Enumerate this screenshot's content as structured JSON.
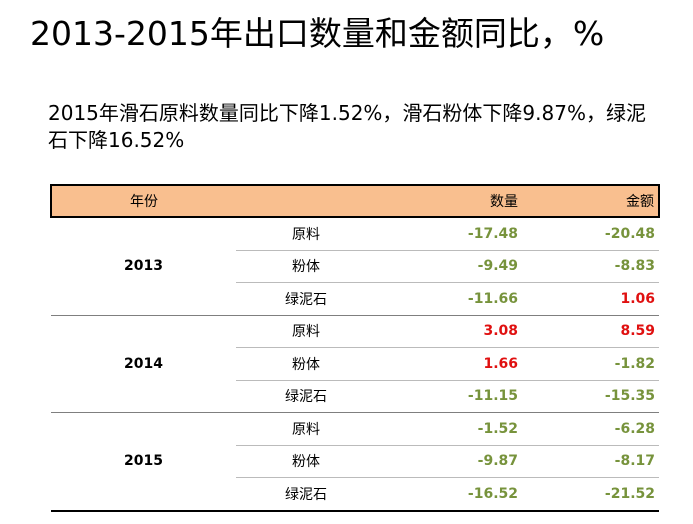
{
  "slide": {
    "title": "2013-2015年出口数量和金额同比，%",
    "subtitle": "2015年滑石原料数量同比下降1.52%，滑石粉体下降9.87%，绿泥石下降16.52%"
  },
  "table": {
    "headers": {
      "year": "年份",
      "type": "",
      "quantity": "数量",
      "amount": "金额"
    },
    "groups": [
      {
        "year": "2013",
        "rows": [
          {
            "type": "原料",
            "quantity": "-17.48",
            "amount": "-20.48"
          },
          {
            "type": "粉体",
            "quantity": "-9.49",
            "amount": "-8.83"
          },
          {
            "type": "绿泥石",
            "quantity": "-11.66",
            "amount": "1.06"
          }
        ]
      },
      {
        "year": "2014",
        "rows": [
          {
            "type": "原料",
            "quantity": "3.08",
            "amount": "8.59"
          },
          {
            "type": "粉体",
            "quantity": "1.66",
            "amount": "-1.82"
          },
          {
            "type": "绿泥石",
            "quantity": "-11.15",
            "amount": "-15.35"
          }
        ]
      },
      {
        "year": "2015",
        "rows": [
          {
            "type": "原料",
            "quantity": "-1.52",
            "amount": "-6.28"
          },
          {
            "type": "粉体",
            "quantity": "-9.87",
            "amount": "-8.17"
          },
          {
            "type": "绿泥石",
            "quantity": "-16.52",
            "amount": "-21.52"
          }
        ]
      }
    ]
  },
  "colors": {
    "header_fill": "#f9bf8f",
    "positive": "#e01010",
    "negative": "#77933c"
  }
}
